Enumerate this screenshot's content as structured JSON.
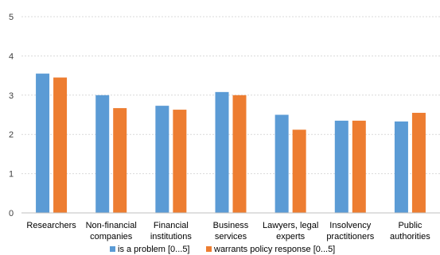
{
  "chart_data": {
    "type": "bar",
    "categories": [
      [
        "Researchers"
      ],
      [
        "Non-financial",
        "companies"
      ],
      [
        "Financial",
        "institutions"
      ],
      [
        "Business",
        "services"
      ],
      [
        "Lawyers, legal",
        "experts"
      ],
      [
        "Insolvency",
        "practitioners"
      ],
      [
        "Public",
        "authorities"
      ]
    ],
    "series": [
      {
        "name": "is a problem [0...5]",
        "color": "#5b9bd5",
        "values": [
          3.55,
          3.0,
          2.73,
          3.08,
          2.5,
          2.35,
          2.33
        ]
      },
      {
        "name": "warrants policy response [0...5]",
        "color": "#ed7d31",
        "values": [
          3.45,
          2.67,
          2.63,
          3.0,
          2.12,
          2.35,
          2.55
        ]
      }
    ],
    "yticks": [
      "0",
      "1",
      "2",
      "3",
      "4",
      "5"
    ],
    "ylim": [
      0,
      5
    ],
    "grid": true,
    "legend_position": "bottom"
  }
}
